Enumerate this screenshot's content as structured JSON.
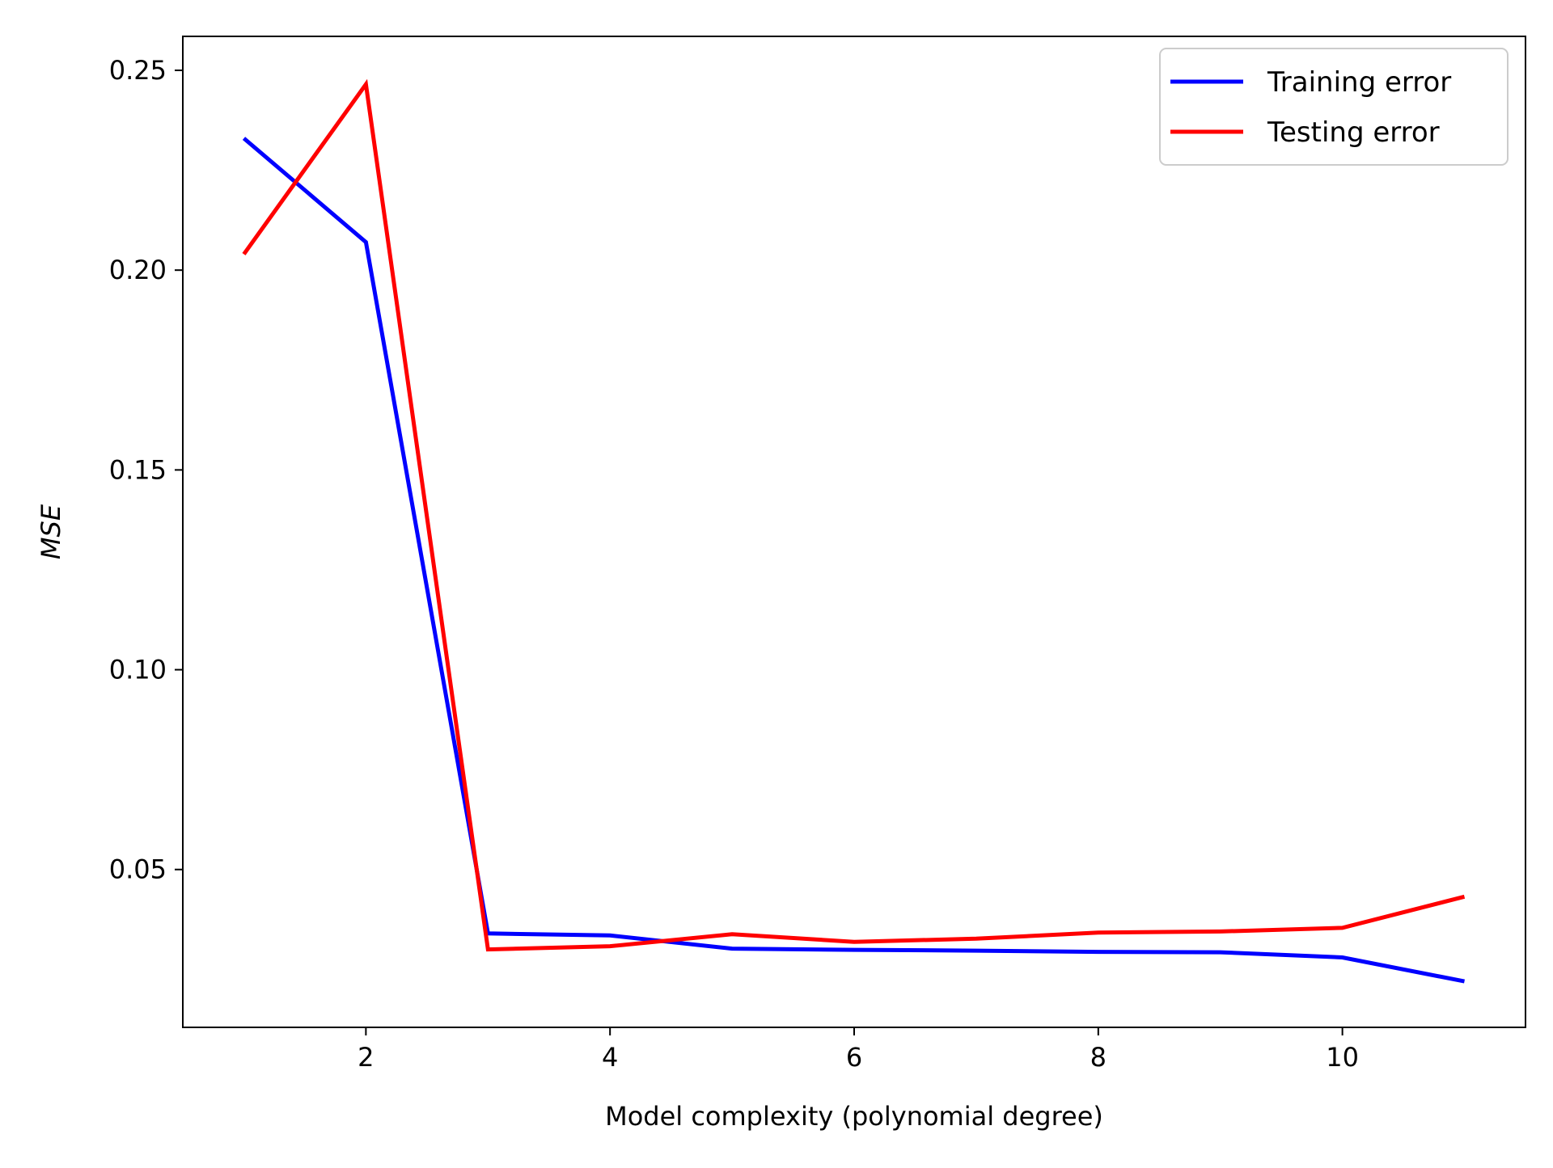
{
  "chart_data": {
    "type": "line",
    "xlabel": "Model complexity (polynomial degree)",
    "ylabel": "MSE",
    "xlim": [
      0.5,
      11.5
    ],
    "ylim": [
      0.0105,
      0.2585
    ],
    "x_ticks": [
      2,
      4,
      6,
      8,
      10
    ],
    "x_tick_labels": [
      "2",
      "4",
      "6",
      "8",
      "10"
    ],
    "y_ticks": [
      0.05,
      0.1,
      0.15,
      0.2,
      0.25
    ],
    "y_tick_labels": [
      "0.05",
      "0.10",
      "0.15",
      "0.20",
      "0.25"
    ],
    "grid": false,
    "legend_position": "top-right",
    "x": [
      1,
      2,
      3,
      4,
      5,
      6,
      7,
      8,
      9,
      10,
      11
    ],
    "series": [
      {
        "name": "Training error",
        "color": "#0000ff",
        "values": [
          0.233,
          0.207,
          0.034,
          0.0335,
          0.0302,
          0.0299,
          0.0297,
          0.0294,
          0.0293,
          0.028,
          0.022
        ]
      },
      {
        "name": "Testing error",
        "color": "#ff0000",
        "values": [
          0.204,
          0.2465,
          0.03,
          0.0308,
          0.0338,
          0.0319,
          0.0327,
          0.0342,
          0.0345,
          0.0354,
          0.0432
        ]
      }
    ]
  }
}
